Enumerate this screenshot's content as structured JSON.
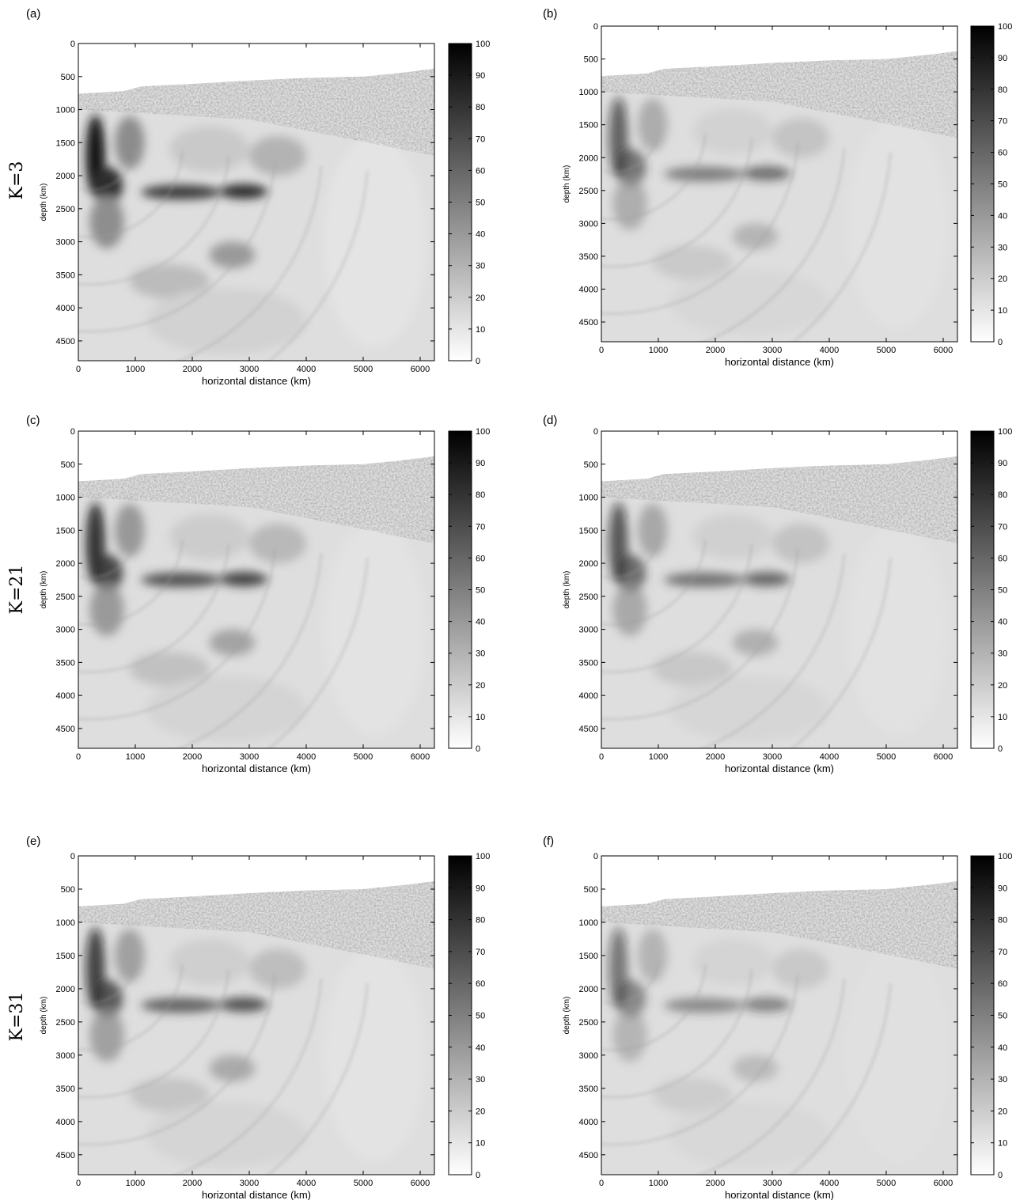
{
  "figure": {
    "row_labels": [
      "K=3",
      "K=21",
      "K=31"
    ]
  },
  "chart_data": [
    {
      "type": "heatmap",
      "panel_label": "(a)",
      "xlabel": "horizontal distance (km)",
      "ylabel": "depth (km)",
      "xlim": [
        0,
        6250
      ],
      "ylim": [
        4800,
        0
      ],
      "xticks": [
        0,
        1000,
        2000,
        3000,
        4000,
        5000,
        6000
      ],
      "yticks": [
        0,
        500,
        1000,
        1500,
        2000,
        2500,
        3000,
        3500,
        4000,
        4500
      ],
      "colorbar": {
        "range": [
          0,
          100
        ],
        "ticks": [
          0,
          10,
          20,
          30,
          40,
          50,
          60,
          70,
          80,
          90,
          100
        ],
        "colormap": "gray-reversed"
      }
    },
    {
      "type": "heatmap",
      "panel_label": "(b)",
      "xlabel": "horizontal distance (km)",
      "ylabel": "depth (km)",
      "xlim": [
        0,
        6250
      ],
      "ylim": [
        4800,
        0
      ],
      "xticks": [
        0,
        1000,
        2000,
        3000,
        4000,
        5000,
        6000
      ],
      "yticks": [
        0,
        500,
        1000,
        1500,
        2000,
        2500,
        3000,
        3500,
        4000,
        4500
      ],
      "colorbar": {
        "range": [
          0,
          100
        ],
        "ticks": [
          0,
          10,
          20,
          30,
          40,
          50,
          60,
          70,
          80,
          90,
          100
        ],
        "colormap": "gray-reversed"
      }
    },
    {
      "type": "heatmap",
      "panel_label": "(c)",
      "xlabel": "horizontal distance (km)",
      "ylabel": "depth (km)",
      "xlim": [
        0,
        6250
      ],
      "ylim": [
        4800,
        0
      ],
      "xticks": [
        0,
        1000,
        2000,
        3000,
        4000,
        5000,
        6000
      ],
      "yticks": [
        0,
        500,
        1000,
        1500,
        2000,
        2500,
        3000,
        3500,
        4000,
        4500
      ],
      "colorbar": {
        "range": [
          0,
          100
        ],
        "ticks": [
          0,
          10,
          20,
          30,
          40,
          50,
          60,
          70,
          80,
          90,
          100
        ],
        "colormap": "gray-reversed"
      }
    },
    {
      "type": "heatmap",
      "panel_label": "(d)",
      "xlabel": "horizontal distance (km)",
      "ylabel": "depth (km)",
      "xlim": [
        0,
        6250
      ],
      "ylim": [
        4800,
        0
      ],
      "xticks": [
        0,
        1000,
        2000,
        3000,
        4000,
        5000,
        6000
      ],
      "yticks": [
        0,
        500,
        1000,
        1500,
        2000,
        2500,
        3000,
        3500,
        4000,
        4500
      ],
      "colorbar": {
        "range": [
          0,
          100
        ],
        "ticks": [
          0,
          10,
          20,
          30,
          40,
          50,
          60,
          70,
          80,
          90,
          100
        ],
        "colormap": "gray-reversed"
      }
    },
    {
      "type": "heatmap",
      "panel_label": "(e)",
      "xlabel": "horizontal distance (km)",
      "ylabel": "depth (km)",
      "xlim": [
        0,
        6250
      ],
      "ylim": [
        4800,
        0
      ],
      "xticks": [
        0,
        1000,
        2000,
        3000,
        4000,
        5000,
        6000
      ],
      "yticks": [
        0,
        500,
        1000,
        1500,
        2000,
        2500,
        3000,
        3500,
        4000,
        4500
      ],
      "colorbar": {
        "range": [
          0,
          100
        ],
        "ticks": [
          0,
          10,
          20,
          30,
          40,
          50,
          60,
          70,
          80,
          90,
          100
        ],
        "colormap": "gray-reversed"
      }
    },
    {
      "type": "heatmap",
      "panel_label": "(f)",
      "xlabel": "horizontal distance (km)",
      "ylabel": "depth (km)",
      "xlim": [
        0,
        6250
      ],
      "ylim": [
        4800,
        0
      ],
      "xticks": [
        0,
        1000,
        2000,
        3000,
        4000,
        5000,
        6000
      ],
      "yticks": [
        0,
        500,
        1000,
        1500,
        2000,
        2500,
        3000,
        3500,
        4000,
        4500
      ],
      "colorbar": {
        "range": [
          0,
          100
        ],
        "ticks": [
          0,
          10,
          20,
          30,
          40,
          50,
          60,
          70,
          80,
          90,
          100
        ],
        "colormap": "gray-reversed"
      }
    }
  ]
}
